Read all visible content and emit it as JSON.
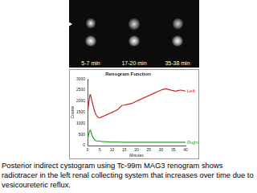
{
  "panels": {
    "frame_labels": [
      "5-7 min",
      "17-20 min",
      "35-38 min"
    ]
  },
  "chart_data": {
    "type": "line",
    "title": "Renogram Function",
    "x_label": "Minutes",
    "y_label": "Counts",
    "x": [
      0,
      1,
      2,
      3,
      4,
      5,
      6,
      8,
      10,
      12,
      14,
      16,
      18,
      20,
      22,
      24,
      26,
      28,
      30,
      32,
      34,
      36,
      38,
      40
    ],
    "series": [
      {
        "name": "Left",
        "color": "#cc1f1f",
        "values": [
          1500,
          2300,
          1900,
          1500,
          1300,
          1250,
          1300,
          1400,
          1500,
          1600,
          1800,
          1850,
          1900,
          2000,
          2100,
          2200,
          2300,
          2400,
          2500,
          2550,
          2500,
          2450,
          2500,
          2450
        ]
      },
      {
        "name": "Right",
        "color": "#2ea02e",
        "values": [
          300,
          700,
          400,
          250,
          200,
          200,
          180,
          170,
          160,
          160,
          150,
          150,
          150,
          150,
          150,
          150,
          150,
          150,
          150,
          150,
          150,
          150,
          150,
          150
        ]
      }
    ],
    "xlim": [
      0,
      40
    ],
    "xticks": [
      0,
      5,
      10,
      15,
      20,
      25,
      30,
      35,
      40
    ],
    "ylim": [
      0,
      3000
    ],
    "yticks": [
      0,
      500,
      1000,
      1500,
      2000,
      2500,
      3000
    ],
    "grid": false
  },
  "caption": "Posterior indirect cystogram using Tc-99m MAG3 renogram shows radiotracer in the left renal collecting system that increases over time due to vesicoureteric reflux."
}
